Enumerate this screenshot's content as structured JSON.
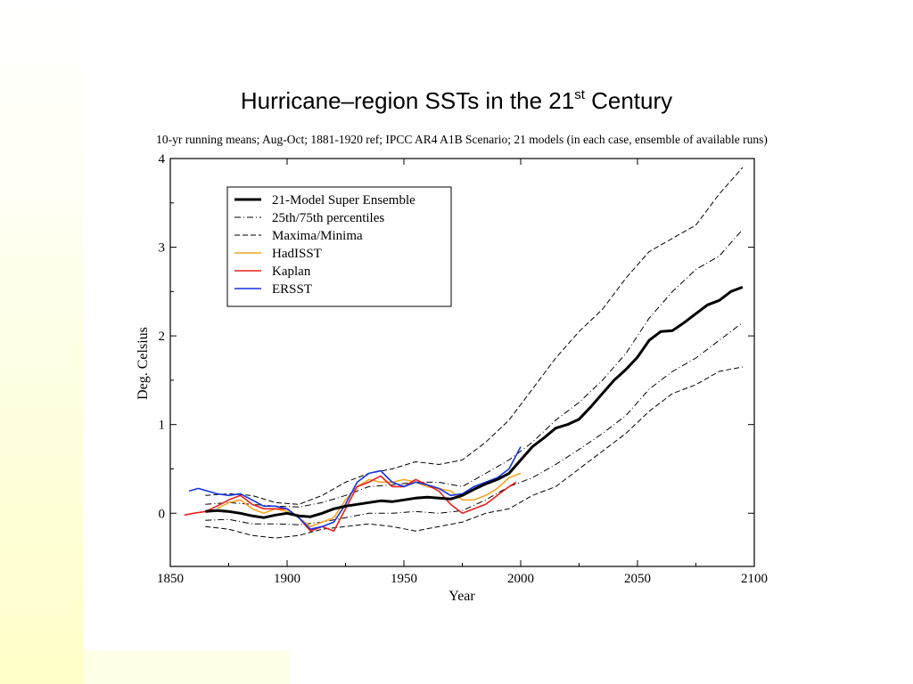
{
  "slide": {
    "title_main": "Hurricane–region SSTs in the 21",
    "title_sup": "st",
    "title_end": " Century",
    "background_gradient": [
      "#ffffc8",
      "#ffffff"
    ]
  },
  "chart_data": {
    "type": "line",
    "subtitle": "10-yr running means; Aug-Oct; 1881-1920 ref; IPCC AR4 A1B Scenario; 21 models (in each case, ensemble of available runs)",
    "xlabel": "Year",
    "ylabel": "Deg. Celsius",
    "xlim": [
      1850,
      2100
    ],
    "ylim": [
      -0.6,
      4.0
    ],
    "xticks": [
      1850,
      1900,
      1950,
      2000,
      2050,
      2100
    ],
    "yticks": [
      0,
      1,
      2,
      3,
      4
    ],
    "grid": false,
    "legend_position": "top-left",
    "series": [
      {
        "name": "21-Model Super Ensemble",
        "color": "#000000",
        "style": "solid",
        "width": 3,
        "x": [
          1865,
          1870,
          1875,
          1880,
          1885,
          1890,
          1895,
          1900,
          1905,
          1910,
          1915,
          1920,
          1925,
          1930,
          1935,
          1940,
          1945,
          1950,
          1955,
          1960,
          1965,
          1970,
          1975,
          1980,
          1985,
          1990,
          1995,
          2000,
          2005,
          2010,
          2015,
          2020,
          2025,
          2030,
          2035,
          2040,
          2045,
          2050,
          2055,
          2060,
          2065,
          2070,
          2075,
          2080,
          2085,
          2090,
          2095
        ],
        "y": [
          0.02,
          0.03,
          0.02,
          0.0,
          -0.03,
          -0.05,
          -0.02,
          0.0,
          -0.03,
          -0.04,
          0.0,
          0.05,
          0.08,
          0.1,
          0.12,
          0.14,
          0.13,
          0.15,
          0.17,
          0.18,
          0.17,
          0.16,
          0.2,
          0.27,
          0.33,
          0.38,
          0.45,
          0.6,
          0.75,
          0.85,
          0.96,
          1.0,
          1.06,
          1.2,
          1.35,
          1.5,
          1.62,
          1.76,
          1.95,
          2.05,
          2.06,
          2.15,
          2.25,
          2.35,
          2.4,
          2.5,
          2.55
        ]
      },
      {
        "name": "25th/75th percentiles",
        "color": "#000000",
        "style": "dashdot",
        "width": 1,
        "x": [
          1865,
          1875,
          1885,
          1895,
          1905,
          1915,
          1925,
          1935,
          1945,
          1955,
          1965,
          1975,
          1985,
          1995,
          2005,
          2015,
          2025,
          2035,
          2045,
          2055,
          2065,
          2075,
          2085,
          2095
        ],
        "y": [
          0.1,
          0.12,
          0.1,
          0.08,
          0.07,
          0.12,
          0.2,
          0.3,
          0.32,
          0.35,
          0.35,
          0.3,
          0.45,
          0.6,
          0.8,
          1.05,
          1.25,
          1.5,
          1.8,
          2.2,
          2.5,
          2.75,
          2.9,
          3.2
        ]
      },
      {
        "name": "25th/75th percentiles (lower)",
        "color": "#000000",
        "style": "dashdot",
        "width": 1,
        "x": [
          1865,
          1875,
          1885,
          1895,
          1905,
          1915,
          1925,
          1935,
          1945,
          1955,
          1965,
          1975,
          1985,
          1995,
          2005,
          2015,
          2025,
          2035,
          2045,
          2055,
          2065,
          2075,
          2085,
          2095
        ],
        "y": [
          -0.08,
          -0.07,
          -0.12,
          -0.12,
          -0.13,
          -0.1,
          -0.05,
          0.0,
          0.0,
          0.02,
          0.0,
          0.03,
          0.15,
          0.3,
          0.4,
          0.55,
          0.72,
          0.9,
          1.1,
          1.4,
          1.6,
          1.75,
          1.95,
          2.15
        ]
      },
      {
        "name": "Maxima/Minima",
        "color": "#000000",
        "style": "dashed",
        "width": 1,
        "x": [
          1865,
          1875,
          1885,
          1895,
          1905,
          1915,
          1925,
          1935,
          1945,
          1955,
          1965,
          1975,
          1985,
          1995,
          2005,
          2015,
          2025,
          2035,
          2045,
          2055,
          2065,
          2075,
          2085,
          2095
        ],
        "y": [
          0.2,
          0.22,
          0.2,
          0.12,
          0.1,
          0.2,
          0.35,
          0.45,
          0.5,
          0.58,
          0.55,
          0.6,
          0.8,
          1.05,
          1.4,
          1.75,
          2.05,
          2.3,
          2.65,
          2.95,
          3.1,
          3.25,
          3.6,
          3.9
        ]
      },
      {
        "name": "Maxima/Minima (lower)",
        "color": "#000000",
        "style": "dashed",
        "width": 1,
        "x": [
          1865,
          1875,
          1885,
          1895,
          1905,
          1915,
          1925,
          1935,
          1945,
          1955,
          1965,
          1975,
          1985,
          1995,
          2005,
          2015,
          2025,
          2035,
          2045,
          2055,
          2065,
          2075,
          2085,
          2095
        ],
        "y": [
          -0.15,
          -0.18,
          -0.25,
          -0.28,
          -0.25,
          -0.18,
          -0.15,
          -0.12,
          -0.15,
          -0.2,
          -0.15,
          -0.1,
          0.0,
          0.05,
          0.2,
          0.3,
          0.5,
          0.7,
          0.9,
          1.15,
          1.35,
          1.45,
          1.6,
          1.65
        ]
      },
      {
        "name": "HadISST",
        "color": "#f5a623",
        "style": "solid",
        "width": 1.6,
        "x": [
          1870,
          1875,
          1880,
          1885,
          1890,
          1895,
          1900,
          1905,
          1910,
          1915,
          1920,
          1925,
          1930,
          1935,
          1940,
          1945,
          1950,
          1955,
          1960,
          1965,
          1970,
          1975,
          1980,
          1985,
          1990,
          1995,
          2000
        ],
        "y": [
          0.05,
          0.12,
          0.15,
          0.05,
          0.0,
          0.05,
          0.02,
          -0.05,
          -0.15,
          -0.1,
          -0.05,
          0.15,
          0.3,
          0.38,
          0.35,
          0.35,
          0.38,
          0.35,
          0.3,
          0.28,
          0.25,
          0.15,
          0.15,
          0.2,
          0.28,
          0.4,
          0.45
        ]
      },
      {
        "name": "Kaplan",
        "color": "#e8201c",
        "style": "solid",
        "width": 1.6,
        "x": [
          1856,
          1860,
          1865,
          1870,
          1875,
          1880,
          1885,
          1890,
          1895,
          1900,
          1905,
          1910,
          1915,
          1920,
          1925,
          1930,
          1935,
          1940,
          1945,
          1950,
          1955,
          1960,
          1965,
          1970,
          1975,
          1980,
          1985,
          1990,
          1995,
          1998
        ],
        "y": [
          -0.02,
          0.0,
          0.02,
          0.08,
          0.15,
          0.2,
          0.1,
          0.05,
          0.05,
          0.05,
          -0.05,
          -0.2,
          -0.15,
          -0.2,
          0.05,
          0.3,
          0.35,
          0.42,
          0.3,
          0.3,
          0.38,
          0.32,
          0.25,
          0.1,
          0.0,
          0.05,
          0.1,
          0.2,
          0.3,
          0.35
        ]
      },
      {
        "name": "ERSST",
        "color": "#1433e0",
        "style": "solid",
        "width": 1.6,
        "x": [
          1858,
          1862,
          1866,
          1870,
          1875,
          1880,
          1885,
          1890,
          1895,
          1900,
          1905,
          1910,
          1915,
          1920,
          1925,
          1930,
          1935,
          1940,
          1945,
          1950,
          1955,
          1960,
          1965,
          1970,
          1975,
          1980,
          1985,
          1990,
          1995,
          2000
        ],
        "y": [
          0.25,
          0.28,
          0.25,
          0.22,
          0.2,
          0.22,
          0.15,
          0.08,
          0.08,
          0.05,
          -0.05,
          -0.18,
          -0.15,
          -0.1,
          0.1,
          0.35,
          0.45,
          0.48,
          0.35,
          0.3,
          0.35,
          0.32,
          0.28,
          0.2,
          0.22,
          0.3,
          0.35,
          0.4,
          0.5,
          0.75
        ]
      }
    ],
    "legend_entries": [
      {
        "label": "21-Model Super Ensemble",
        "color": "#000000",
        "style": "solid",
        "width": 3
      },
      {
        "label": "25th/75th percentiles",
        "color": "#000000",
        "style": "dashdot",
        "width": 1
      },
      {
        "label": "Maxima/Minima",
        "color": "#000000",
        "style": "dashed",
        "width": 1
      },
      {
        "label": "HadISST",
        "color": "#f5a623",
        "style": "solid",
        "width": 1.6
      },
      {
        "label": "Kaplan",
        "color": "#e8201c",
        "style": "solid",
        "width": 1.6
      },
      {
        "label": "ERSST",
        "color": "#1433e0",
        "style": "solid",
        "width": 1.6
      }
    ]
  }
}
